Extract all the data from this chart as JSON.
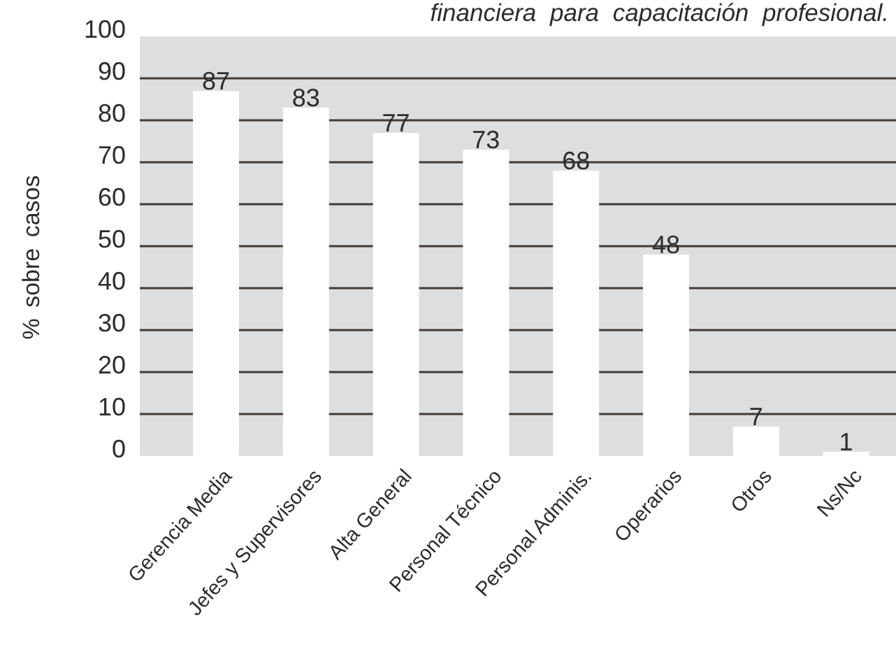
{
  "chart_data": {
    "type": "bar",
    "title": "financiera para capacitación profesional.",
    "ylabel": "% sobre casos",
    "categories": [
      "Gerencia Media",
      "Jefes y Supervisores",
      "Alta General",
      "Personal Técnico",
      "Personal Adminis.",
      "Operarios",
      "Otros",
      "Ns/Nc"
    ],
    "values": [
      87,
      83,
      77,
      73,
      68,
      48,
      7,
      1
    ],
    "color": "#ffffff",
    "ylim": [
      0,
      100
    ],
    "yticks": [
      0,
      10,
      20,
      30,
      40,
      50,
      60,
      70,
      80,
      90,
      100
    ],
    "grid": "y",
    "data_labels": true
  }
}
